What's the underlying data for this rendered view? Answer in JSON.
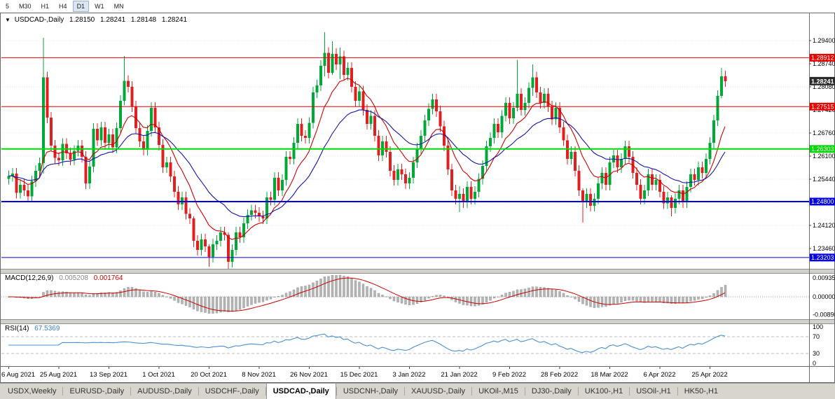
{
  "toolbar": {
    "timeframes": [
      {
        "label": "5",
        "active": false
      },
      {
        "label": "M30",
        "active": false
      },
      {
        "label": "H1",
        "active": false
      },
      {
        "label": "H4",
        "active": false
      },
      {
        "label": "D1",
        "active": true
      },
      {
        "label": "W1",
        "active": false
      },
      {
        "label": "MN",
        "active": false
      }
    ]
  },
  "chart": {
    "marker": "▼",
    "symbol_label": "USDCAD-,Daily",
    "ohlc": {
      "open": "1.28150",
      "high": "1.28241",
      "low": "1.28148",
      "close": "1.28241"
    },
    "current_price": "1.28241",
    "current_price_color": "#2b2b2b",
    "levels": [
      {
        "price": 1.28912,
        "label": "1.28912",
        "color": "#e80000",
        "width": 1
      },
      {
        "price": 1.27515,
        "label": "1.27515",
        "color": "#e80000",
        "width": 1
      },
      {
        "price": 1.26303,
        "label": "1.26303",
        "color": "#00d800",
        "width": 2
      },
      {
        "price": 1.248,
        "label": "1.24800",
        "color": "#0000e0",
        "width": 2
      },
      {
        "price": 1.23203,
        "label": "1.23203",
        "color": "#0000e0",
        "width": 1
      }
    ],
    "colors": {
      "up": "#00a838",
      "down": "#e02020",
      "ma_fast": "#cc0000",
      "ma_slow": "#1414a8",
      "macd_hist": "#b4b4b4",
      "macd_hist_edge": "#8a8a8a",
      "macd_signal": "#cc0000",
      "rsi_line": "#4a90d2"
    }
  },
  "chart_data": {
    "type": "candlestick",
    "symbol": "USDCAD",
    "timeframe": "Daily",
    "first_open": 1.2545,
    "closes": [
      1.2553,
      1.256,
      1.2505,
      1.2528,
      1.2512,
      1.2495,
      1.2538,
      1.2568,
      1.259,
      1.2835,
      1.272,
      1.264,
      1.2605,
      1.2598,
      1.2645,
      1.2618,
      1.26,
      1.2625,
      1.264,
      1.2608,
      1.2532,
      1.258,
      1.2688,
      1.2655,
      1.2692,
      1.2648,
      1.2672,
      1.2635,
      1.269,
      1.2768,
      1.2825,
      1.2808,
      1.2752,
      1.269,
      1.2652,
      1.2628,
      1.2682,
      1.2748,
      1.2692,
      1.2642,
      1.2578,
      1.2592,
      1.2552,
      1.2508,
      1.2472,
      1.2492,
      1.2445,
      1.2432,
      1.2368,
      1.2342,
      1.2372,
      1.2352,
      1.2322,
      1.2358,
      1.2368,
      1.2392,
      1.2385,
      1.2308,
      1.2342,
      1.2392,
      1.2378,
      1.2418,
      1.2442,
      1.2455,
      1.2448,
      1.2438,
      1.2432,
      1.2492,
      1.2485,
      1.2548,
      1.2512,
      1.2542,
      1.2608,
      1.2602,
      1.2648,
      1.2702,
      1.2668,
      1.2662,
      1.2705,
      1.2792,
      1.2812,
      1.2868,
      1.2905,
      1.2848,
      1.2902,
      1.2872,
      1.2895,
      1.2842,
      1.2862,
      1.2808,
      1.2768,
      1.2795,
      1.2742,
      1.2702,
      1.2725,
      1.2668,
      1.2612,
      1.2652,
      1.2622,
      1.2568,
      1.2542,
      1.2572,
      1.2558,
      1.2532,
      1.2548,
      1.2592,
      1.2632,
      1.2668,
      1.2712,
      1.2745,
      1.2772,
      1.2738,
      1.2695,
      1.264,
      1.2572,
      1.2512,
      1.2488,
      1.2502,
      1.2478,
      1.2522,
      1.2488,
      1.2508,
      1.2545,
      1.2582,
      1.2638,
      1.2662,
      1.2702,
      1.2678,
      1.2725,
      1.2762,
      1.2718,
      1.2748,
      1.2788,
      1.2742,
      1.2762,
      1.2805,
      1.2835,
      1.2792,
      1.2762,
      1.2788,
      1.2752,
      1.2715,
      1.2748,
      1.2692,
      1.2655,
      1.2602,
      1.2622,
      1.2568,
      1.2512,
      1.2478,
      1.2502,
      1.2468,
      1.2488,
      1.2532,
      1.2562,
      1.2528,
      1.2592,
      1.2612,
      1.2578,
      1.2602,
      1.2638,
      1.2608,
      1.2562,
      1.2528,
      1.2488,
      1.2512,
      1.2558,
      1.2528,
      1.2542,
      1.2508,
      1.2475,
      1.2492,
      1.2462,
      1.2488,
      1.2512,
      1.2478,
      1.2522,
      1.2558,
      1.2542,
      1.2578,
      1.2562,
      1.2602,
      1.2648,
      1.2712,
      1.2782,
      1.2838,
      1.2824
    ],
    "wick_overrides": {
      "9": [
        1.2948,
        1.256
      ],
      "30": [
        1.2896,
        1.2755
      ],
      "48": [
        1.2438,
        1.235
      ],
      "52": [
        1.2358,
        1.2294
      ],
      "57": [
        1.2392,
        1.2288
      ],
      "82": [
        1.2964,
        1.2838
      ],
      "84": [
        1.2938,
        1.2842
      ],
      "86": [
        1.292,
        1.283
      ],
      "117": [
        1.2524,
        1.245
      ],
      "132": [
        1.2885,
        1.2738
      ],
      "136": [
        1.2872,
        1.2782
      ],
      "149": [
        1.2518,
        1.242
      ],
      "172": [
        1.2498,
        1.2438
      ],
      "185": [
        1.2862,
        1.2775
      ]
    },
    "y_axis_ticks": [
      "1.29400",
      "1.28740",
      "1.28080",
      "1.27420",
      "1.26760",
      "1.26100",
      "1.25440",
      "1.24780",
      "1.24120",
      "1.23460"
    ],
    "x_axis_ticks": [
      {
        "label": "6 Aug 2021",
        "index": 0
      },
      {
        "label": "25 Aug 2021",
        "index": 13
      },
      {
        "label": "13 Sep 2021",
        "index": 26
      },
      {
        "label": "1 Oct 2021",
        "index": 39
      },
      {
        "label": "20 Oct 2021",
        "index": 52
      },
      {
        "label": "8 Nov 2021",
        "index": 65
      },
      {
        "label": "26 Nov 2021",
        "index": 78
      },
      {
        "label": "15 Dec 2021",
        "index": 91
      },
      {
        "label": "3 Jan 2022",
        "index": 104
      },
      {
        "label": "21 Jan 2022",
        "index": 117
      },
      {
        "label": "9 Feb 2022",
        "index": 130
      },
      {
        "label": "28 Feb 2022",
        "index": 143
      },
      {
        "label": "18 Mar 2022",
        "index": 156
      },
      {
        "label": "6 Apr 2022",
        "index": 169
      },
      {
        "label": "25 Apr 2022",
        "index": 182
      }
    ]
  },
  "macd": {
    "label": "MACD(12,26,9)",
    "value_main": "0.005208",
    "value_signal": "0.001764",
    "fast": 12,
    "slow": 26,
    "signal": 9,
    "y_ticks": {
      "top": "0.00935",
      "zero": "0.00000",
      "bottom": "-0.00890"
    }
  },
  "rsi": {
    "label": "RSI(14)",
    "value": "67.5369",
    "period": 14,
    "levels": [
      70,
      30
    ],
    "y_ticks": [
      "100",
      "70",
      "30",
      "0"
    ]
  },
  "tabbar": {
    "tabs": [
      {
        "label": "USDX,Weekly",
        "active": false
      },
      {
        "label": "EURUSD-,Daily",
        "active": false
      },
      {
        "label": "AUDUSD-,Daily",
        "active": false
      },
      {
        "label": "USDCHF-,Daily",
        "active": false
      },
      {
        "label": "USDCAD-,Daily",
        "active": true
      },
      {
        "label": "USDCNH-,Daily",
        "active": false
      },
      {
        "label": "XAUUSD-,Daily",
        "active": false
      },
      {
        "label": "UKOil-,M15",
        "active": false
      },
      {
        "label": "DJ30-,Daily",
        "active": false
      },
      {
        "label": "UK100-,H1",
        "active": false
      },
      {
        "label": "USOil-,H1",
        "active": false
      },
      {
        "label": "HK50-,H1",
        "active": false
      }
    ]
  }
}
